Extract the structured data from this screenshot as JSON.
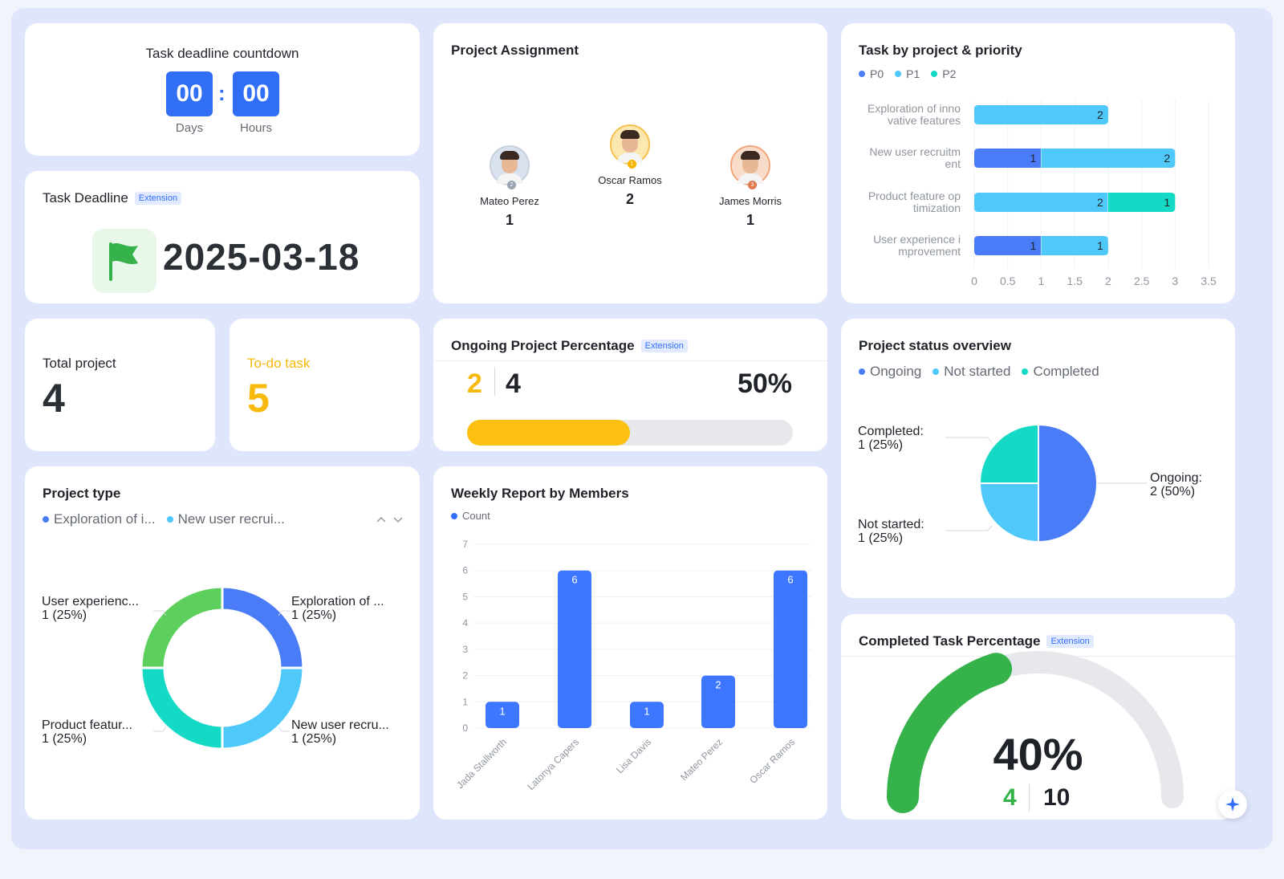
{
  "countdown": {
    "title": "Task deadline countdown",
    "days_value": "00",
    "hours_value": "00",
    "separator": ":",
    "days_label": "Days",
    "hours_label": "Hours"
  },
  "deadline": {
    "title": "Task Deadline",
    "badge": "Extension",
    "date": "2025-03-18",
    "icon": "flag-icon",
    "icon_color": "#36b24a"
  },
  "total_project": {
    "label": "Total project",
    "value": "4"
  },
  "todo_task": {
    "label": "To-do task",
    "value": "5",
    "color": "#f7b90c"
  },
  "assignment": {
    "title": "Project Assignment",
    "people": [
      {
        "name": "Mateo Perez",
        "count": "1",
        "rank": "2"
      },
      {
        "name": "Oscar Ramos",
        "count": "2",
        "rank": "1"
      },
      {
        "name": "James Morris",
        "count": "1",
        "rank": "3"
      }
    ]
  },
  "task_priority": {
    "title": "Task by project & priority",
    "legend": [
      {
        "name": "P0",
        "color": "#4a7cf7"
      },
      {
        "name": "P1",
        "color": "#4fc8fa"
      },
      {
        "name": "P2",
        "color": "#14dac5"
      }
    ],
    "category_lines": [
      [
        "Exploration of inno",
        "vative features"
      ],
      [
        "New user recruitm",
        "ent"
      ],
      [
        "Product feature op",
        "timization"
      ],
      [
        "User experience i",
        "mprovement"
      ]
    ],
    "tick_labels": [
      "0",
      "0.5",
      "1",
      "1.5",
      "2",
      "2.5",
      "3",
      "3.5"
    ]
  },
  "ongoing": {
    "title": "Ongoing Project Percentage",
    "badge": "Extension",
    "count": "2",
    "total": "4",
    "percent_label": "50%",
    "fraction": 0.5
  },
  "status": {
    "title": "Project status overview",
    "legend": [
      {
        "name": "Ongoing",
        "color": "#4a7cf7"
      },
      {
        "name": "Not started",
        "color": "#4fc8fa"
      },
      {
        "name": "Completed",
        "color": "#14dac5"
      }
    ],
    "labels": {
      "ongoing": [
        "Ongoing:",
        "2 (50%)"
      ],
      "not_started": [
        "Not started:",
        "1 (25%)"
      ],
      "completed": [
        "Completed:",
        "1 (25%)"
      ]
    }
  },
  "project_type": {
    "title": "Project type",
    "legend": [
      {
        "name": "Exploration of i...",
        "color": "#4a7cf7"
      },
      {
        "name": "New user recrui...",
        "color": "#4fc8fa"
      }
    ],
    "labels": {
      "exploration": [
        "Exploration of ...",
        "1 (25%)"
      ],
      "new_user": [
        "New user recru...",
        "1 (25%)"
      ],
      "product": [
        "Product featur...",
        "1 (25%)"
      ],
      "user_exp": [
        "User experienc...",
        "1 (25%)"
      ]
    }
  },
  "weekly": {
    "title": "Weekly Report by Members",
    "legend": [
      {
        "name": "Count",
        "color": "#3370ff"
      }
    ]
  },
  "completed_tasks": {
    "title": "Completed Task Percentage",
    "badge": "Extension",
    "percent_label": "40%",
    "done": "4",
    "total": "10",
    "fraction": 0.4,
    "fill_color": "#36b24a",
    "track_color": "#e6e8ec"
  },
  "chart_data": [
    {
      "type": "bar",
      "orientation": "horizontal",
      "stacked": true,
      "title": "Task by project & priority",
      "categories": [
        "Exploration of innovative features",
        "New user recruitment",
        "Product feature optimization",
        "User experience improvement"
      ],
      "series": [
        {
          "name": "P0",
          "color": "#4a7cf7",
          "values": [
            0,
            1,
            0,
            1
          ]
        },
        {
          "name": "P1",
          "color": "#4fc8fa",
          "values": [
            2,
            2,
            2,
            1
          ]
        },
        {
          "name": "P2",
          "color": "#14dac5",
          "values": [
            0,
            0,
            1,
            0
          ]
        }
      ],
      "xlim": [
        0,
        3.5
      ],
      "legend": "top-left",
      "grid": true
    },
    {
      "type": "pie",
      "title": "Project status overview",
      "slices": [
        {
          "name": "Ongoing",
          "value": 2,
          "color": "#4a7cf7"
        },
        {
          "name": "Not started",
          "value": 1,
          "color": "#4fc8fa"
        },
        {
          "name": "Completed",
          "value": 1,
          "color": "#14dac5"
        }
      ],
      "legend": "top-left"
    },
    {
      "type": "pie",
      "donut": true,
      "title": "Project type",
      "slices": [
        {
          "name": "Exploration of innovative features",
          "value": 1,
          "color": "#4a7cf7"
        },
        {
          "name": "New user recruitment",
          "value": 1,
          "color": "#4fc8fa"
        },
        {
          "name": "Product feature optimization",
          "value": 1,
          "color": "#14dac5"
        },
        {
          "name": "User experience improvement",
          "value": 1,
          "color": "#5ccf5c"
        }
      ],
      "legend": "top-left"
    },
    {
      "type": "bar",
      "title": "Weekly Report by Members",
      "categories": [
        "Jada Stallworth",
        "Latonya Capers",
        "Lisa Davis",
        "Mateo Perez",
        "Oscar Ramos"
      ],
      "series": [
        {
          "name": "Count",
          "color": "#3370ff",
          "values": [
            1,
            6,
            1,
            2,
            6
          ]
        }
      ],
      "ylim": [
        0,
        7
      ],
      "yticks": [
        "0",
        "1",
        "2",
        "3",
        "4",
        "5",
        "6",
        "7"
      ],
      "legend": "top-left",
      "grid": true
    }
  ]
}
